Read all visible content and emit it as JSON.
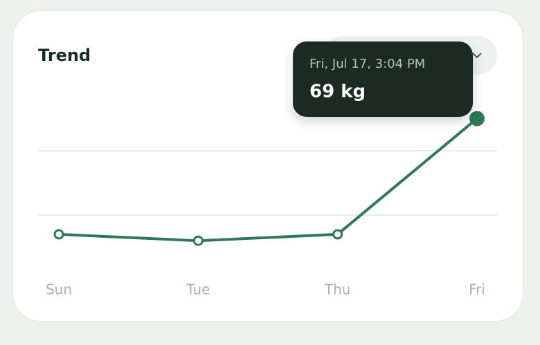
{
  "chart_data": {
    "type": "line",
    "title": "Trend",
    "categories": [
      "Sun",
      "Tue",
      "Thu",
      "Fri"
    ],
    "values": [
      67.2,
      67.1,
      67.2,
      69
    ],
    "value_labels": [
      null,
      null,
      null,
      "69 kg"
    ],
    "tooltip": "Fri, Jul 17, 3:04 PM",
    "color": "#2e7a55",
    "ylim": [
      66.5,
      69.5
    ],
    "yticks": [
      67.5,
      68.5
    ],
    "grid": true
  }
}
